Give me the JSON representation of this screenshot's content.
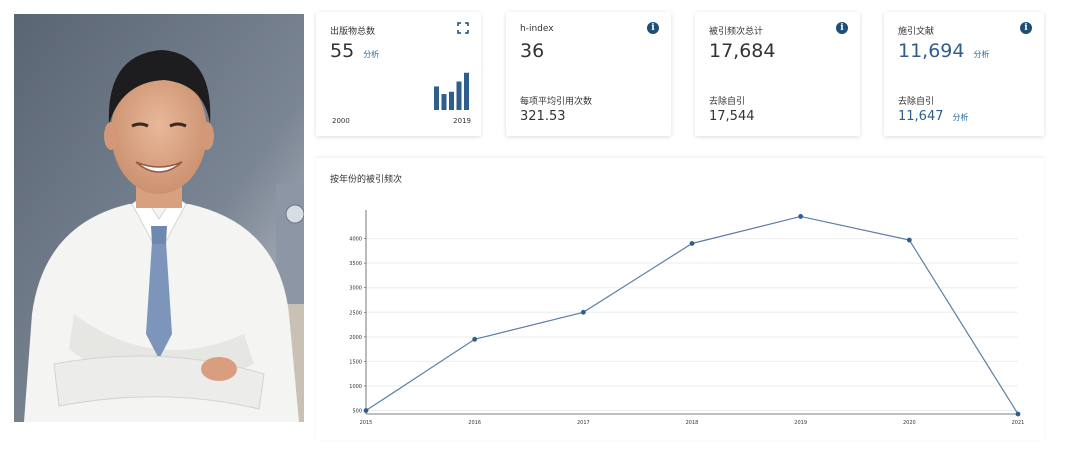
{
  "cards": [
    {
      "label": "出版物总数",
      "value": "55",
      "link": "分析",
      "year_start": "2000",
      "year_end": "2019",
      "mini_bar_levels": [
        0.62,
        0.42,
        0.48,
        0.75,
        0.98
      ]
    },
    {
      "label": "h-index",
      "value": "36",
      "sub_label": "每项平均引用次数",
      "sub_value": "321.53"
    },
    {
      "label": "被引频次总计",
      "value": "17,684",
      "sub_label": "去除自引",
      "sub_value": "17,544"
    },
    {
      "label": "施引文献",
      "value": "11,694",
      "link": "分析",
      "sub_label": "去除自引",
      "sub_value": "11,647",
      "sub_link": "分析"
    }
  ],
  "colors": {
    "accent": "#2d5e8e",
    "line": "#5b7fa3",
    "info_icon": "#1e4f78"
  },
  "chart_data": {
    "type": "line",
    "title": "按年份的被引频次",
    "x": [
      "2015",
      "2016",
      "2017",
      "2018",
      "2019",
      "2020",
      "2021"
    ],
    "series": [
      {
        "values": [
          500,
          1950,
          2500,
          3900,
          4450,
          3970,
          430
        ]
      }
    ],
    "yticks": [
      500,
      1000,
      1500,
      2000,
      2500,
      3000,
      3500,
      4000
    ],
    "ylim": [
      430,
      4500
    ],
    "grid": true
  }
}
